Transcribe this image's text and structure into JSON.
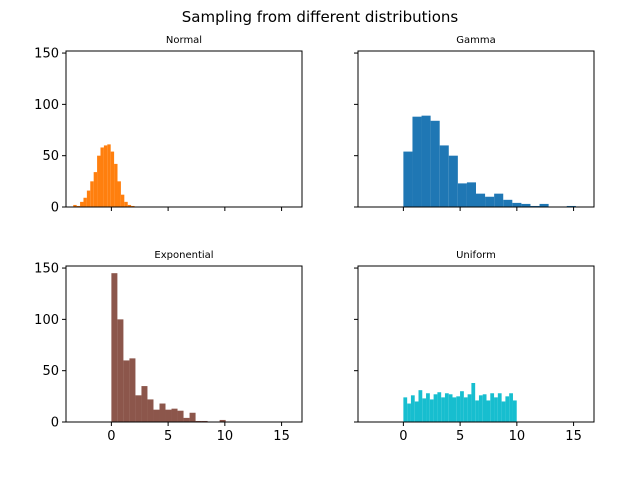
{
  "title": "Sampling from different distributions",
  "axes_shared": {
    "xlim": [
      -4.0,
      16.8
    ],
    "ylim": [
      0,
      152
    ],
    "xticks": [
      0,
      5,
      10,
      15
    ],
    "yticks": [
      0,
      50,
      100,
      150
    ]
  },
  "chart_data": [
    {
      "type": "bar",
      "title": "Normal",
      "color": "#ff7f0e",
      "bin_start": -3.36,
      "bin_width": 0.3,
      "values": [
        2,
        1,
        5,
        9,
        16,
        25,
        34,
        50,
        58,
        60,
        61,
        54,
        42,
        25,
        12,
        5,
        2,
        1
      ],
      "xlabel": "",
      "ylabel": "",
      "show_xtick_labels": false,
      "show_ytick_labels": true
    },
    {
      "type": "bar",
      "title": "Gamma",
      "color": "#1f77b4",
      "bin_start": 0.0,
      "bin_width": 0.8,
      "values": [
        54,
        88,
        89,
        84,
        60,
        50,
        23,
        24,
        13,
        10,
        13,
        7,
        4,
        3,
        1,
        3,
        0,
        0,
        1
      ],
      "xlabel": "",
      "ylabel": "",
      "show_xtick_labels": false,
      "show_ytick_labels": false
    },
    {
      "type": "bar",
      "title": "Exponential",
      "color": "#8c564b",
      "bin_start": 0.0,
      "bin_width": 0.53,
      "values": [
        145,
        100,
        60,
        62,
        26,
        35,
        22,
        12,
        18,
        12,
        13,
        11,
        4,
        9,
        1,
        1,
        0,
        0,
        2
      ],
      "xlabel": "",
      "ylabel": "",
      "show_xtick_labels": true,
      "show_ytick_labels": true
    },
    {
      "type": "bar",
      "title": "Uniform",
      "color": "#17becf",
      "bin_start": 0.0,
      "bin_width": 0.333,
      "values": [
        24,
        18,
        26,
        20,
        31,
        23,
        28,
        22,
        27,
        29,
        24,
        28,
        27,
        24,
        25,
        30,
        24,
        27,
        38,
        21,
        26,
        27,
        21,
        28,
        24,
        28,
        20,
        25,
        28,
        21
      ],
      "xlabel": "",
      "ylabel": "",
      "show_xtick_labels": true,
      "show_ytick_labels": false
    }
  ]
}
